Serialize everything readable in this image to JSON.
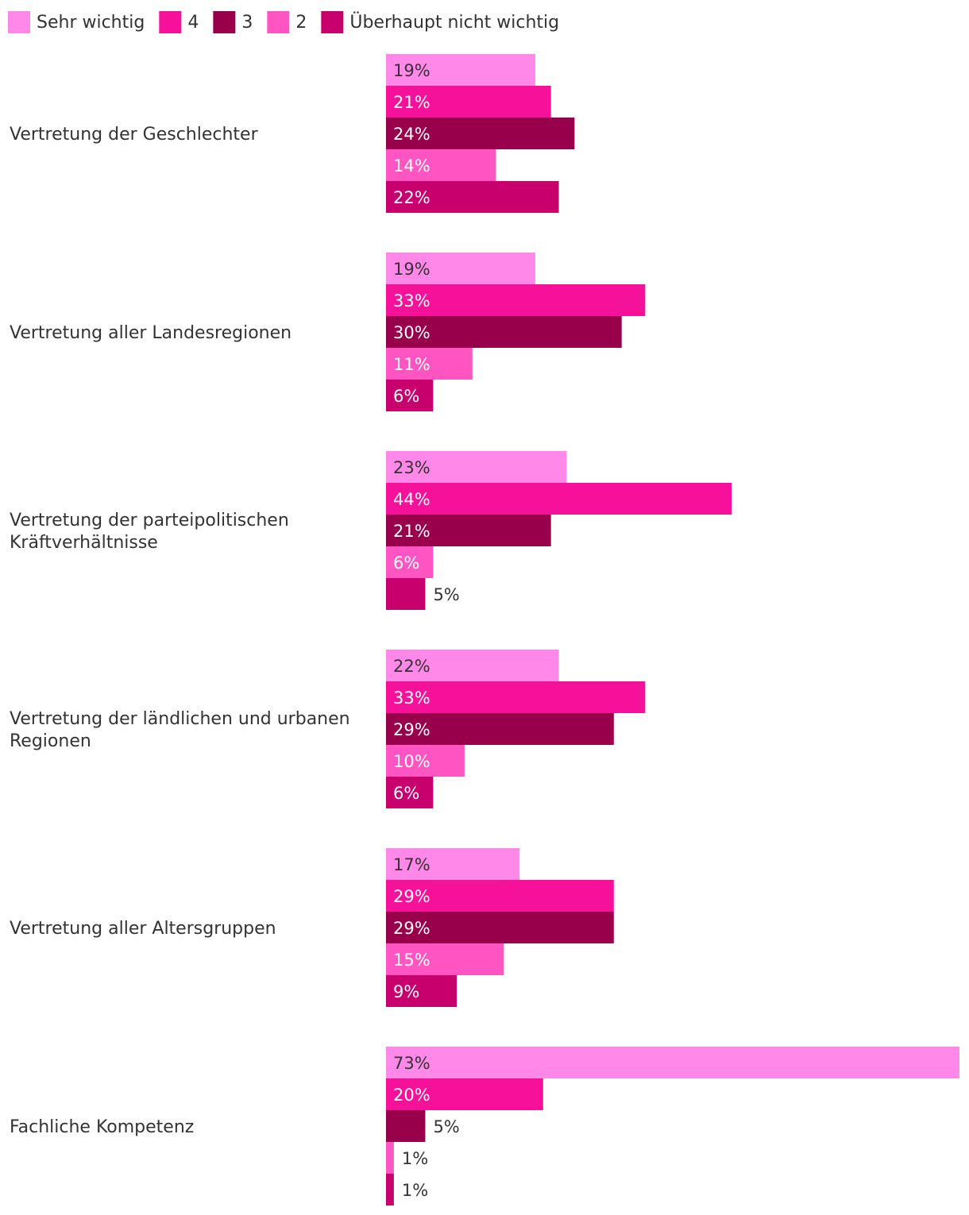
{
  "chart_data": {
    "type": "bar",
    "orientation": "horizontal",
    "legend_position": "top-left",
    "value_suffix": "%",
    "xlim": [
      0,
      73
    ],
    "categories": [
      [
        "Vertretung der Geschlechter"
      ],
      [
        "Vertretung aller Landesregionen"
      ],
      [
        "Vertretung der parteipolitischen",
        "Kräftverhältnisse"
      ],
      [
        "Vertretung der ländlichen und urbanen",
        "Regionen"
      ],
      [
        "Vertretung aller Altersgruppen"
      ],
      [
        "Fachliche Kompetenz"
      ]
    ],
    "series": [
      {
        "name": "Sehr wichtig",
        "color": "#ff88e8",
        "label_color": "#333333",
        "values": [
          19,
          19,
          23,
          22,
          17,
          73
        ]
      },
      {
        "name": "4",
        "color": "#f5119a",
        "label_color": "#ffffff",
        "values": [
          21,
          33,
          44,
          33,
          29,
          20
        ]
      },
      {
        "name": "3",
        "color": "#98004c",
        "label_color": "#ffffff",
        "values": [
          24,
          30,
          21,
          29,
          29,
          5
        ]
      },
      {
        "name": "2",
        "color": "#ff55c3",
        "label_color": "#ffffff",
        "values": [
          14,
          11,
          6,
          10,
          15,
          1
        ]
      },
      {
        "name": "Überhaupt nicht wichtig",
        "color": "#c8006e",
        "label_color": "#ffffff",
        "values": [
          22,
          6,
          5,
          6,
          9,
          1
        ]
      }
    ]
  }
}
